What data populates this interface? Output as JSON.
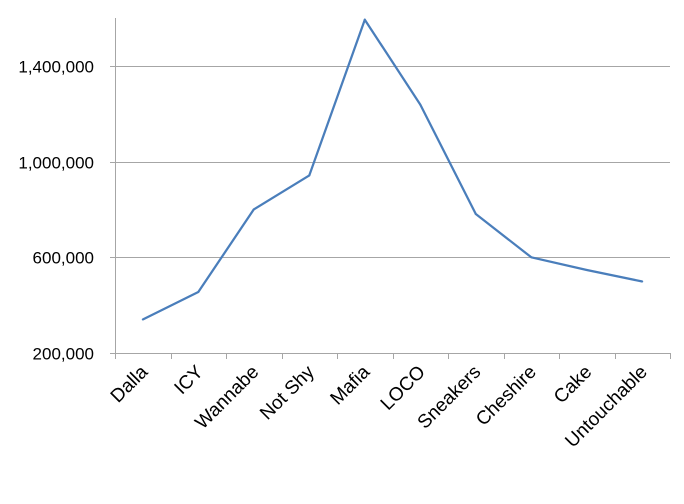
{
  "chart_data": {
    "type": "line",
    "title": "",
    "xlabel": "",
    "ylabel": "",
    "categories": [
      "Dalla",
      "ICY",
      "Wannabe",
      "Not Shy",
      "Mafia",
      "LOCO",
      "Sneakers",
      "Cheshire",
      "Cake",
      "Untouchable"
    ],
    "series": [
      {
        "values": [
          340000,
          455000,
          800000,
          942000,
          1593000,
          1238000,
          781000,
          600000,
          547000,
          499000
        ],
        "color": "#4a7ebb"
      }
    ],
    "ylim": [
      200000,
      1600000
    ],
    "yticks": [
      200000,
      600000,
      1000000,
      1400000
    ],
    "ytick_labels": [
      "200,000",
      "600,000",
      "1,000,000",
      "1,400,000"
    ],
    "grid": true,
    "legend": "none"
  }
}
